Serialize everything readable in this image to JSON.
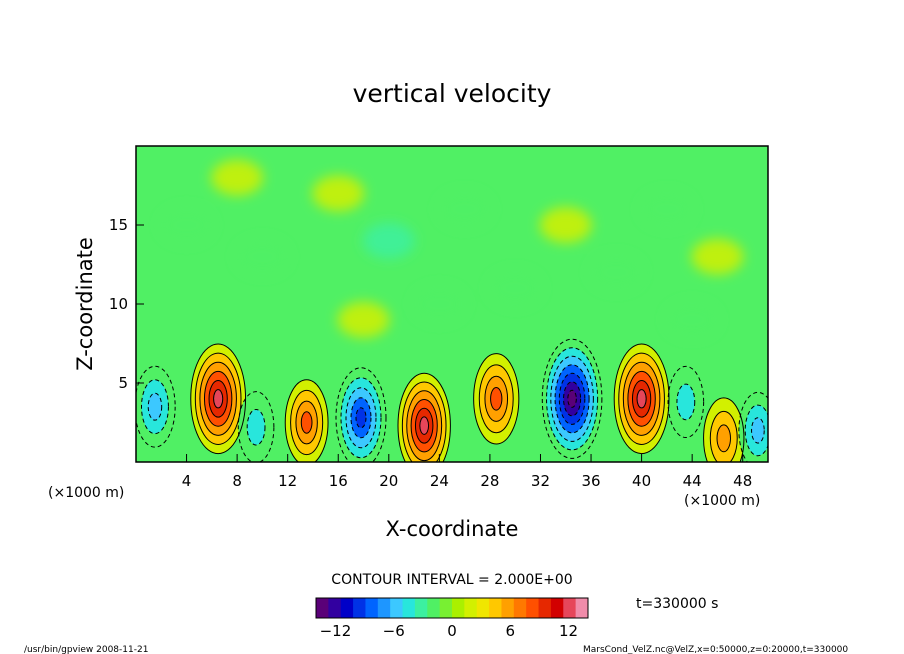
{
  "chart_data": {
    "type": "heatmap",
    "title": "vertical velocity",
    "xlabel": "X-coordinate",
    "ylabel": "Z-coordinate",
    "x_unit": "(×1000 m)",
    "y_unit": "(×1000 m)",
    "xlim": [
      0,
      50
    ],
    "ylim": [
      0,
      20
    ],
    "xticks": [
      4,
      8,
      12,
      16,
      20,
      24,
      28,
      32,
      36,
      40,
      44,
      48
    ],
    "yticks": [
      5,
      10,
      15
    ],
    "contour_interval": "CONTOUR INTERVAL = 2.000E+00",
    "time_label": "t=330000 s",
    "colorbar": {
      "min": -14,
      "max": 14,
      "ticks": [
        -12,
        -6,
        0,
        6,
        12
      ],
      "colors": [
        "#5a0078",
        "#3200a0",
        "#0000c8",
        "#0032e6",
        "#0064ff",
        "#1e96ff",
        "#3cc8ff",
        "#28e6dc",
        "#3cf0a0",
        "#50f064",
        "#78f032",
        "#aaf000",
        "#d2f000",
        "#f0e600",
        "#ffc800",
        "#ffa000",
        "#ff7800",
        "#ff5000",
        "#e62800",
        "#d20000",
        "#e6465a",
        "#f08caa"
      ]
    },
    "cells": [
      {
        "x": 1.5,
        "z": 3.5,
        "w": -6
      },
      {
        "x": 6.5,
        "z": 4.0,
        "w": 12
      },
      {
        "x": 9.5,
        "z": 2.2,
        "w": -4
      },
      {
        "x": 13.5,
        "z": 2.5,
        "w": 7
      },
      {
        "x": 17.8,
        "z": 2.8,
        "w": -10
      },
      {
        "x": 22.8,
        "z": 2.3,
        "w": 11
      },
      {
        "x": 28.5,
        "z": 4.0,
        "w": 8
      },
      {
        "x": 34.5,
        "z": 4.0,
        "w": -14
      },
      {
        "x": 40.0,
        "z": 4.0,
        "w": 12
      },
      {
        "x": 43.5,
        "z": 3.8,
        "w": -4
      },
      {
        "x": 46.5,
        "z": 1.5,
        "w": 6
      },
      {
        "x": 49.2,
        "z": 2.0,
        "w": -5
      }
    ]
  },
  "footer": {
    "left": "/usr/bin/gpview   2008-11-21",
    "right": "MarsCond_VelZ.nc@VelZ,x=0:50000,z=0:20000,t=330000"
  }
}
